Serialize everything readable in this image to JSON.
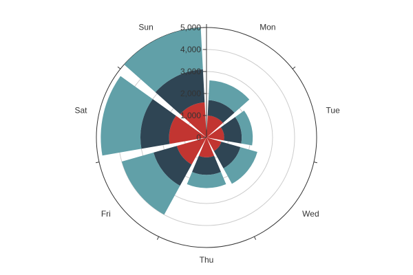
{
  "chart_data": {
    "type": "polar-bar-stacked",
    "categories": [
      "Mon",
      "Tue",
      "Wed",
      "Thu",
      "Fri",
      "Sat",
      "Sun"
    ],
    "radial_axis": {
      "min": 0,
      "max": 5000,
      "ticks": [
        0,
        1000,
        2000,
        3000,
        4000,
        5000
      ],
      "tick_labels": [
        "0",
        "1,000",
        "2,000",
        "3,000",
        "4,000",
        "5,000"
      ]
    },
    "series": [
      {
        "values": [
          1000,
          800,
          700,
          900,
          1400,
          1700,
          1600
        ]
      },
      {
        "values": [
          700,
          800,
          900,
          800,
          1100,
          1300,
          1500
        ]
      },
      {
        "values": [
          900,
          500,
          800,
          600,
          1500,
          1800,
          1900
        ]
      }
    ],
    "colors": [
      "#c23531",
      "#2f4554",
      "#61a0a8"
    ],
    "grid_color": "#cccccc",
    "axis_color": "#333333"
  }
}
